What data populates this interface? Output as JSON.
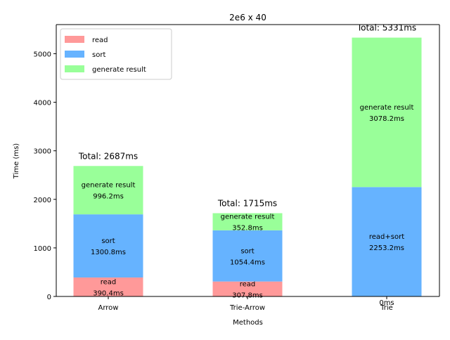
{
  "chart_data": {
    "type": "bar",
    "stacked": true,
    "title": "2e6 x 40",
    "xlabel": "Methods",
    "ylabel": "Time (ms)",
    "ylim": [
      0,
      5600
    ],
    "yticks": [
      0,
      1000,
      2000,
      3000,
      4000,
      5000
    ],
    "categories": [
      "Arrow",
      "Trie-Arrow",
      "Trie"
    ],
    "series": [
      {
        "name": "read",
        "color": "#ff9999",
        "values": [
          390.4,
          307.8,
          0
        ]
      },
      {
        "name": "sort",
        "color": "#66b3ff",
        "values": [
          1300.8,
          1054.4,
          2253.2
        ]
      },
      {
        "name": "generate result",
        "color": "#99ff99",
        "values": [
          996.2,
          352.8,
          3078.2
        ]
      }
    ],
    "segment_labels": [
      [
        [
          "read",
          "390.4ms"
        ],
        [
          "read",
          "307.8ms"
        ],
        [
          "0ms"
        ]
      ],
      [
        [
          "sort",
          "1300.8ms"
        ],
        [
          "sort",
          "1054.4ms"
        ],
        [
          "read+sort",
          "2253.2ms"
        ]
      ],
      [
        [
          "generate result",
          "996.2ms"
        ],
        [
          "generate result",
          "352.8ms"
        ],
        [
          "generate result",
          "3078.2ms"
        ]
      ]
    ],
    "totals": [
      "Total: 2687ms",
      "Total: 1715ms",
      "Total: 5331ms"
    ],
    "legend": {
      "position": "top-left",
      "entries": [
        "read",
        "sort",
        "generate result"
      ]
    },
    "grid": false
  }
}
